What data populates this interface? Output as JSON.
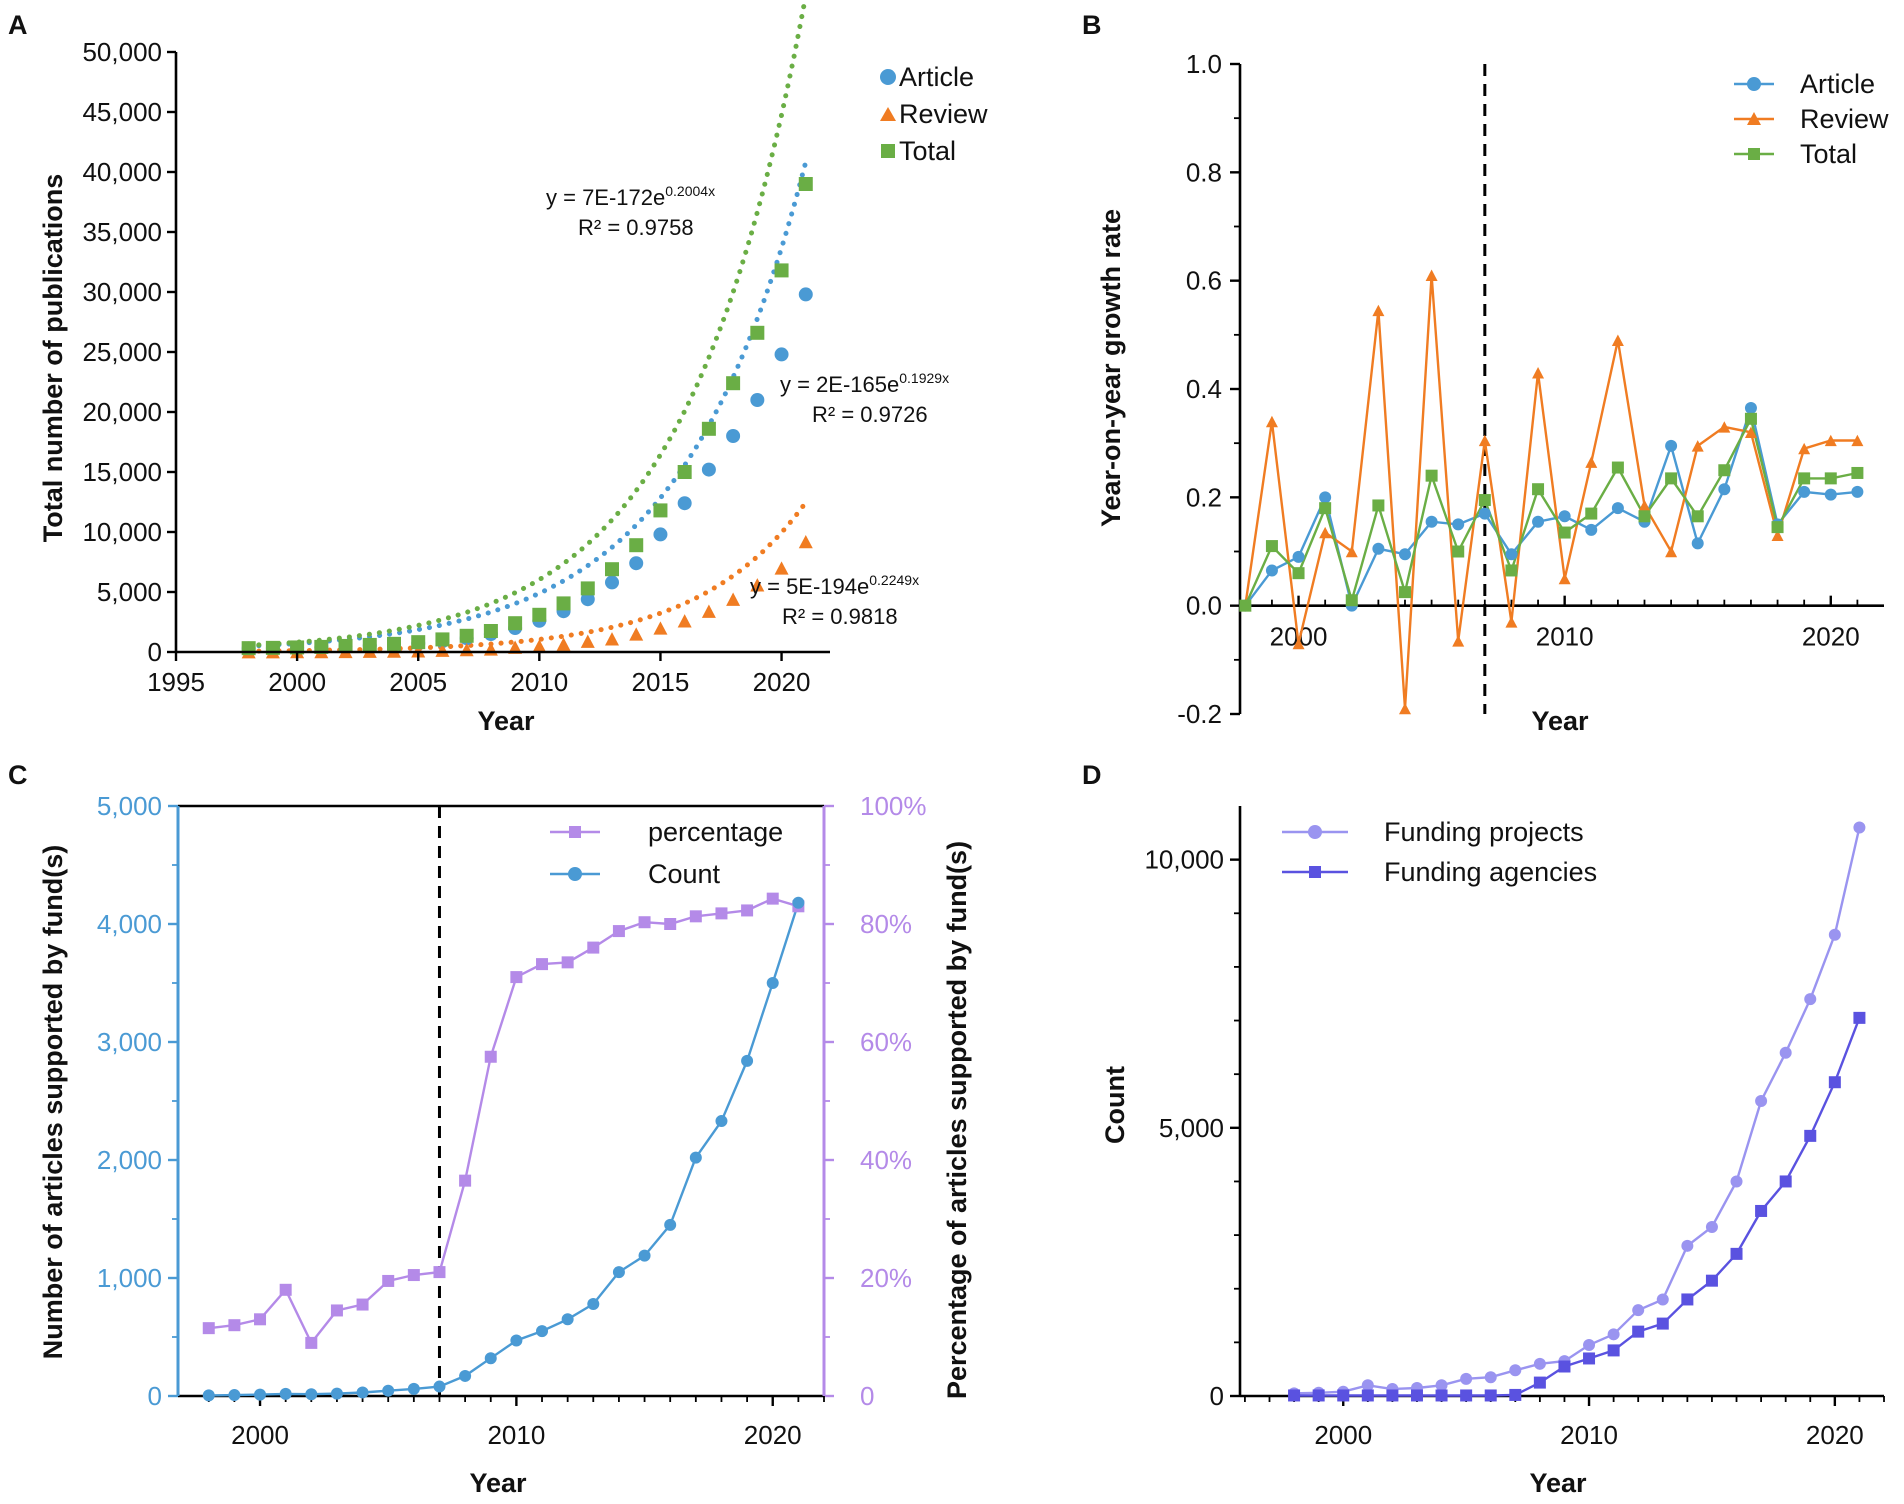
{
  "colors": {
    "article": "#4a9ad4",
    "review": "#f07c22",
    "total": "#6aae45",
    "percentage": "#b48ae8",
    "count_c": "#4a9ad4",
    "funding_projects": "#9a94f0",
    "funding_agencies": "#5a52e0",
    "axis": "#000000"
  },
  "chart_data": [
    {
      "panel": "A",
      "type": "scatter",
      "xlabel": "Year",
      "ylabel": "Total number of publications",
      "xlim": [
        1995,
        2022
      ],
      "ylim": [
        0,
        50000
      ],
      "xticks": [
        1995,
        2000,
        2005,
        2010,
        2015,
        2020
      ],
      "xtick_labels": [
        "1995",
        "2000",
        "2005",
        "2010",
        "2015",
        "2020"
      ],
      "yticks": [
        0,
        5000,
        10000,
        15000,
        20000,
        25000,
        30000,
        35000,
        40000,
        45000,
        50000
      ],
      "ytick_labels": [
        "0",
        "5,000",
        "10,000",
        "15,000",
        "20,000",
        "25,000",
        "30,000",
        "35,000",
        "40,000",
        "45,000",
        "50,000"
      ],
      "legend_position": "top-right",
      "x": [
        1998,
        1999,
        2000,
        2001,
        2002,
        2003,
        2004,
        2005,
        2006,
        2007,
        2008,
        2009,
        2010,
        2011,
        2012,
        2013,
        2014,
        2015,
        2016,
        2017,
        2018,
        2019,
        2020,
        2021
      ],
      "series": [
        {
          "name": "Article",
          "marker": "circle",
          "color_key": "article",
          "values": [
            300,
            320,
            350,
            390,
            460,
            530,
            600,
            720,
            900,
            1150,
            1500,
            2000,
            2600,
            3400,
            4400,
            5800,
            7400,
            9800,
            12400,
            15200,
            18000,
            21000,
            24800,
            29800
          ],
          "trend": {
            "a": 2e-165,
            "b": 0.1929,
            "label": "y = 2E-165e",
            "exp": "0.1929x",
            "r2": "R² = 0.9726"
          }
        },
        {
          "name": "Review",
          "marker": "triangle",
          "color_key": "review",
          "values": [
            20,
            25,
            30,
            35,
            45,
            60,
            80,
            100,
            150,
            200,
            250,
            400,
            500,
            650,
            900,
            1100,
            1500,
            2000,
            2600,
            3400,
            4400,
            5600,
            7000,
            9200
          ],
          "trend": {
            "a": 5e-194,
            "b": 0.2249,
            "label": "y = 5E-194e",
            "exp": "0.2249x",
            "r2": "R² = 0.9818"
          }
        },
        {
          "name": "Total",
          "marker": "square",
          "color_key": "total",
          "values": [
            320,
            345,
            380,
            425,
            505,
            590,
            680,
            820,
            1050,
            1350,
            1750,
            2400,
            3100,
            4050,
            5300,
            6900,
            8900,
            11800,
            15000,
            18600,
            22400,
            26600,
            31800,
            39000
          ],
          "trend": {
            "a": 7e-172,
            "b": 0.2004,
            "label": "y = 7E-172e",
            "exp": "0.2004x",
            "r2": "R² = 0.9758"
          }
        }
      ]
    },
    {
      "panel": "B",
      "type": "line",
      "xlabel": "Year",
      "ylabel": "Year-on-year growth rate",
      "xlim": [
        1997.8,
        2022
      ],
      "ylim": [
        -0.2,
        1.0
      ],
      "xticks": [
        2000,
        2010,
        2020
      ],
      "xtick_labels": [
        "2000",
        "2010",
        "2020"
      ],
      "yticks": [
        -0.2,
        0.0,
        0.2,
        0.4,
        0.6,
        0.8,
        1.0
      ],
      "ytick_labels": [
        "-0.2",
        "0.0",
        "0.2",
        "0.4",
        "0.6",
        "0.8",
        "1.0"
      ],
      "vline_x": 2007,
      "legend_position": "top-right",
      "x": [
        1998,
        1999,
        2000,
        2001,
        2002,
        2003,
        2004,
        2005,
        2006,
        2007,
        2008,
        2009,
        2010,
        2011,
        2012,
        2013,
        2014,
        2015,
        2016,
        2017,
        2018,
        2019,
        2020,
        2021
      ],
      "series": [
        {
          "name": "Article",
          "marker": "circle",
          "color_key": "article",
          "values": [
            0.0,
            0.065,
            0.09,
            0.2,
            0.0,
            0.105,
            0.095,
            0.155,
            0.15,
            0.17,
            0.095,
            0.155,
            0.165,
            0.14,
            0.18,
            0.155,
            0.295,
            0.115,
            0.215,
            0.365,
            0.15,
            0.21,
            0.205,
            0.21
          ]
        },
        {
          "name": "Review",
          "marker": "triangle",
          "color_key": "review",
          "values": [
            0.0,
            0.34,
            -0.07,
            0.135,
            0.1,
            0.545,
            -0.19,
            0.61,
            -0.065,
            0.305,
            -0.03,
            0.43,
            0.05,
            0.265,
            0.49,
            0.185,
            0.1,
            0.295,
            0.33,
            0.32,
            0.13,
            0.29,
            0.305,
            0.305
          ]
        },
        {
          "name": "Total",
          "marker": "square",
          "color_key": "total",
          "values": [
            0.0,
            0.11,
            0.06,
            0.18,
            0.01,
            0.185,
            0.025,
            0.24,
            0.1,
            0.195,
            0.065,
            0.215,
            0.135,
            0.17,
            0.255,
            0.165,
            0.235,
            0.165,
            0.25,
            0.345,
            0.145,
            0.235,
            0.235,
            0.245
          ]
        }
      ]
    },
    {
      "panel": "C",
      "type": "line",
      "xlabel": "Year",
      "ylabel": "Number of articles supported by fund(s)",
      "y2label": "Percentage of articles supported by fund(s)",
      "xlim": [
        1996.8,
        2022
      ],
      "ylim": [
        0,
        5000
      ],
      "y2lim": [
        0,
        100
      ],
      "xticks": [
        2000,
        2010,
        2020
      ],
      "xtick_labels": [
        "2000",
        "2010",
        "2020"
      ],
      "yticks": [
        0,
        1000,
        2000,
        3000,
        4000,
        5000
      ],
      "ytick_labels": [
        "0",
        "1,000",
        "2,000",
        "3,000",
        "4,000",
        "5,000"
      ],
      "y2ticks": [
        0,
        20,
        40,
        60,
        80,
        100
      ],
      "y2tick_labels": [
        "0",
        "20%",
        "40%",
        "60%",
        "80%",
        "100%"
      ],
      "vline_x": 2007,
      "legend_position": "top-right",
      "x": [
        1998,
        1999,
        2000,
        2001,
        2002,
        2003,
        2004,
        2005,
        2006,
        2007,
        2008,
        2009,
        2010,
        2011,
        2012,
        2013,
        2014,
        2015,
        2016,
        2017,
        2018,
        2019,
        2020,
        2021
      ],
      "series": [
        {
          "name": "percentage",
          "axis": "right",
          "marker": "square",
          "color_key": "percentage",
          "values": [
            11.5,
            12,
            13,
            18,
            9,
            14.5,
            15.5,
            19.5,
            20.5,
            21,
            36.5,
            57.5,
            71,
            73.2,
            73.5,
            76,
            78.8,
            80.3,
            80,
            81.3,
            81.8,
            82.3,
            84.3,
            83
          ]
        },
        {
          "name": "Count",
          "axis": "left",
          "marker": "circle",
          "color_key": "count_c",
          "values": [
            5,
            8,
            12,
            18,
            15,
            20,
            30,
            45,
            60,
            80,
            170,
            320,
            470,
            550,
            650,
            780,
            1050,
            1190,
            1450,
            2020,
            2330,
            2840,
            3500,
            4180
          ]
        }
      ]
    },
    {
      "panel": "D",
      "type": "line",
      "xlabel": "Year",
      "ylabel": "Count",
      "xlim": [
        1995.8,
        2022
      ],
      "ylim": [
        0,
        11000
      ],
      "xticks": [
        2000,
        2010,
        2020
      ],
      "xtick_labels": [
        "2000",
        "2010",
        "2020"
      ],
      "yticks": [
        0,
        5000,
        10000
      ],
      "ytick_labels": [
        "0",
        "5,000",
        "10,000"
      ],
      "legend_position": "top-left",
      "x": [
        1998,
        1999,
        2000,
        2001,
        2002,
        2003,
        2004,
        2005,
        2006,
        2007,
        2008,
        2009,
        2010,
        2011,
        2012,
        2013,
        2014,
        2015,
        2016,
        2017,
        2018,
        2019,
        2020,
        2021
      ],
      "series": [
        {
          "name": "Funding projects",
          "marker": "circle",
          "color_key": "funding_projects",
          "values": [
            50,
            60,
            80,
            200,
            130,
            150,
            200,
            320,
            350,
            480,
            600,
            650,
            950,
            1150,
            1600,
            1800,
            2800,
            3150,
            4000,
            5500,
            6400,
            7400,
            8600,
            10600
          ]
        },
        {
          "name": "Funding agencies",
          "marker": "square",
          "color_key": "funding_agencies",
          "values": [
            10,
            10,
            10,
            10,
            10,
            10,
            10,
            10,
            10,
            20,
            250,
            550,
            700,
            850,
            1200,
            1350,
            1800,
            2150,
            2650,
            3450,
            4000,
            4850,
            5850,
            7050
          ]
        }
      ]
    }
  ]
}
